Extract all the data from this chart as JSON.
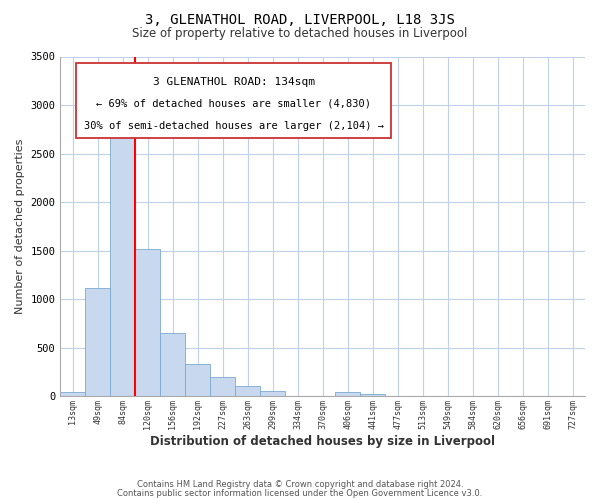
{
  "title": "3, GLENATHOL ROAD, LIVERPOOL, L18 3JS",
  "subtitle": "Size of property relative to detached houses in Liverpool",
  "xlabel": "Distribution of detached houses by size in Liverpool",
  "ylabel": "Number of detached properties",
  "bar_labels": [
    "13sqm",
    "49sqm",
    "84sqm",
    "120sqm",
    "156sqm",
    "192sqm",
    "227sqm",
    "263sqm",
    "299sqm",
    "334sqm",
    "370sqm",
    "406sqm",
    "441sqm",
    "477sqm",
    "513sqm",
    "549sqm",
    "584sqm",
    "620sqm",
    "656sqm",
    "691sqm",
    "727sqm"
  ],
  "bar_values": [
    45,
    1110,
    2940,
    1520,
    650,
    330,
    195,
    100,
    55,
    0,
    0,
    45,
    20,
    0,
    0,
    0,
    0,
    0,
    0,
    0,
    0
  ],
  "bar_color": "#c8d8ef",
  "bar_edge_color": "#7aaad0",
  "redline_x": 3,
  "redline_label": "3 GLENATHOL ROAD: 134sqm",
  "annotation_line1": "← 69% of detached houses are smaller (4,830)",
  "annotation_line2": "30% of semi-detached houses are larger (2,104) →",
  "ylim": [
    0,
    3500
  ],
  "yticks": [
    0,
    500,
    1000,
    1500,
    2000,
    2500,
    3000,
    3500
  ],
  "footnote1": "Contains HM Land Registry data © Crown copyright and database right 2024.",
  "footnote2": "Contains public sector information licensed under the Open Government Licence v3.0.",
  "background_color": "#ffffff",
  "grid_color": "#c0d0e8",
  "title_fontsize": 10,
  "subtitle_fontsize": 8.5,
  "ylabel_fontsize": 8,
  "xlabel_fontsize": 8.5
}
